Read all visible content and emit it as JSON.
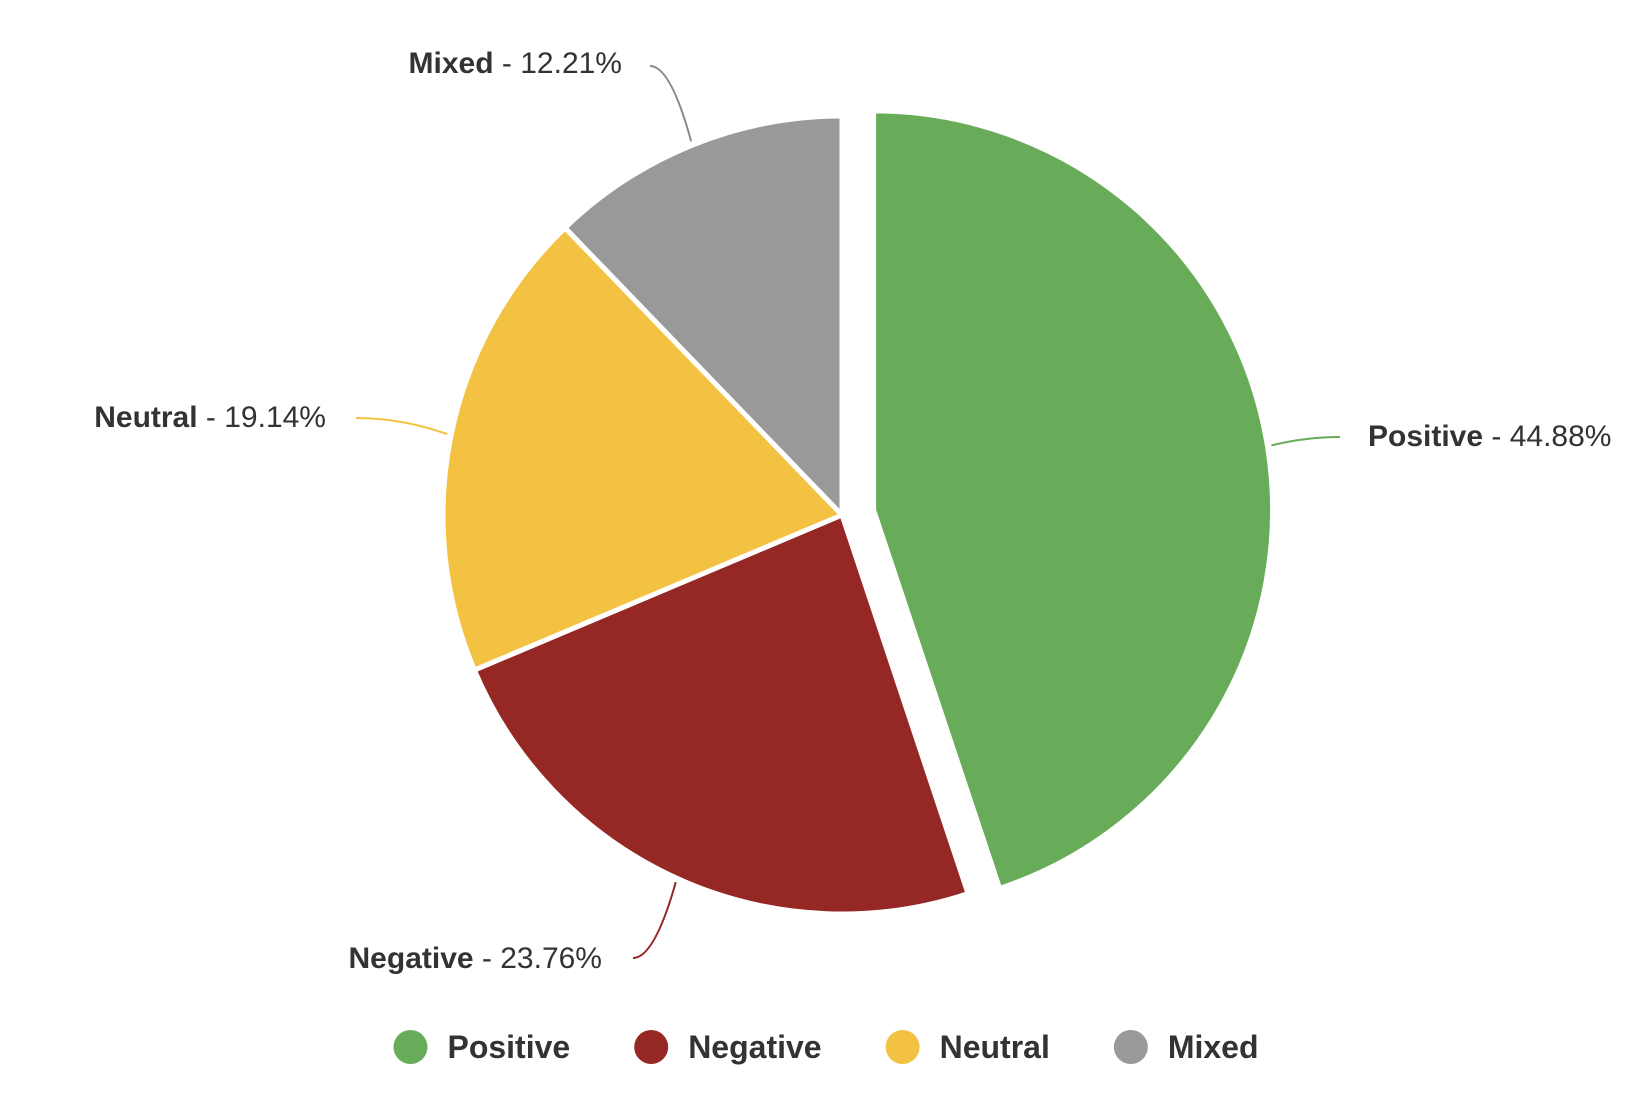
{
  "chart_data": {
    "type": "pie",
    "slices": [
      {
        "name": "Positive",
        "value": 44.88,
        "label": "Positive - 44.88%",
        "color": "#68ac5a",
        "exploded": true
      },
      {
        "name": "Negative",
        "value": 23.76,
        "label": "Negative - 23.76%",
        "color": "#952724",
        "exploded": false
      },
      {
        "name": "Neutral",
        "value": 19.14,
        "label": "Neutral - 19.14%",
        "color": "#f3c242",
        "exploded": false
      },
      {
        "name": "Mixed",
        "value": 12.21,
        "label": "Mixed - 12.21%",
        "color": "#999999",
        "exploded": false
      }
    ],
    "legend": {
      "position": "bottom",
      "items": [
        "Positive",
        "Negative",
        "Neutral",
        "Mixed"
      ]
    },
    "label_separator": " - ",
    "label_suffix": "%"
  }
}
